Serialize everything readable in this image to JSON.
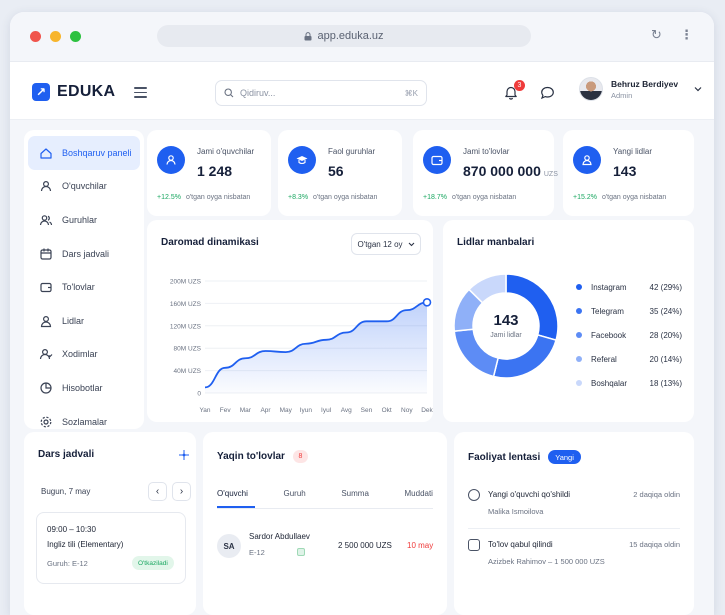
{
  "browser": {
    "url": "app.eduka.uz"
  },
  "colors": {
    "accent": "#1f5ff0",
    "positive": "#1aa761",
    "danger": "#ef3b3b"
  },
  "header": {
    "logo": "EDUKA",
    "search_placeholder": "Qidiruv...",
    "search_shortcut": "⌘K",
    "notifications_count": "3",
    "user_name": "Behruz Berdiyev",
    "user_role": "Admin"
  },
  "sidebar": {
    "items": [
      {
        "label": "Boshqaruv paneli",
        "icon": "home-icon"
      },
      {
        "label": "O'quvchilar",
        "icon": "user-icon"
      },
      {
        "label": "Guruhlar",
        "icon": "users-icon"
      },
      {
        "label": "Dars jadvali",
        "icon": "calendar-icon"
      },
      {
        "label": "To'lovlar",
        "icon": "wallet-icon"
      },
      {
        "label": "Lidlar",
        "icon": "lead-icon"
      },
      {
        "label": "Xodimlar",
        "icon": "staff-icon"
      },
      {
        "label": "Hisobotlar",
        "icon": "report-icon"
      },
      {
        "label": "Sozlamalar",
        "icon": "gear-icon"
      }
    ]
  },
  "stats": [
    {
      "label": "Jami o'quvchilar",
      "value": "1 248",
      "currency": "",
      "change": "+12.5%",
      "note": "o'tgan oyga nisbatan",
      "icon": "students-icon"
    },
    {
      "label": "Faol guruhlar",
      "value": "56",
      "currency": "",
      "change": "+8.3%",
      "note": "o'tgan oyga nisbatan",
      "icon": "cap-icon"
    },
    {
      "label": "Jami to'lovlar",
      "value": "870 000 000",
      "currency": "UZS",
      "change": "+18.7%",
      "note": "o'tgan oyga nisbatan",
      "icon": "wallet-icon"
    },
    {
      "label": "Yangi lidlar",
      "value": "143",
      "currency": "",
      "change": "+15.2%",
      "note": "o'tgan oyga nisbatan",
      "icon": "new-lead-icon"
    }
  ],
  "revenue": {
    "title": "Daromad dinamikasi",
    "period": "O'tgan 12 oy"
  },
  "leads": {
    "title": "Lidlar manbalari",
    "center_value": "143",
    "center_label": "Jami lidlar"
  },
  "chart_data": [
    {
      "type": "area",
      "title": "Daromad dinamikasi",
      "categories": [
        "Yan",
        "Fev",
        "Mar",
        "Apr",
        "May",
        "Iyun",
        "Iyul",
        "Avg",
        "Sen",
        "Okt",
        "Noy",
        "Dek"
      ],
      "values": [
        10,
        45,
        62,
        75,
        73,
        88,
        95,
        108,
        128,
        128,
        148,
        162
      ],
      "ylim": [
        0,
        200
      ],
      "yticks": [
        0,
        40,
        80,
        120,
        160,
        200
      ],
      "ytick_labels": [
        "0",
        "40M UZS",
        "80M UZS",
        "120M UZS",
        "160M UZS",
        "200M UZS"
      ],
      "grid": true
    },
    {
      "type": "pie",
      "title": "Lidlar manbalari",
      "legend_position": "right",
      "slices": [
        {
          "label": "Instagram",
          "value": 42,
          "percent": "29%",
          "display": "42 (29%)",
          "color": "#1f5ff0"
        },
        {
          "label": "Telegram",
          "value": 35,
          "percent": "24%",
          "display": "35 (24%)",
          "color": "#3b74f2"
        },
        {
          "label": "Facebook",
          "value": 28,
          "percent": "20%",
          "display": "28 (20%)",
          "color": "#5d8cf5"
        },
        {
          "label": "Referal",
          "value": 20,
          "percent": "14%",
          "display": "20 (14%)",
          "color": "#8fb0f8"
        },
        {
          "label": "Boshqalar",
          "value": 18,
          "percent": "13%",
          "display": "18 (13%)",
          "color": "#c9d8fb"
        }
      ]
    }
  ],
  "schedule": {
    "title": "Dars jadvali",
    "date": "Bugun, 7 may",
    "lesson": {
      "time": "09:00 – 10:30",
      "name": "Ingliz tili (Elementary)",
      "group": "Guruh: E-12",
      "status": "O'tkaziladi"
    }
  },
  "payments": {
    "title": "Yaqin to'lovlar",
    "count": "8",
    "columns": [
      "O'quvchi",
      "Guruh",
      "Summa",
      "Muddati"
    ],
    "rows": [
      {
        "initials": "SA",
        "name": "Sardor Abdullaev",
        "group": "E-12",
        "amount": "2 500 000 UZS",
        "due": "10 may"
      }
    ]
  },
  "activity": {
    "title": "Faoliyat lentasi",
    "badge": "Yangi",
    "items": [
      {
        "title": "Yangi o'quvchi qo'shildi",
        "detail": "Malika Ismoilova",
        "time": "2 daqiqa oldin",
        "icon": "user-add-icon"
      },
      {
        "title": "To'lov qabul qilindi",
        "detail": "Azizbek Rahimov – 1 500 000 UZS",
        "time": "15 daqiqa oldin",
        "icon": "payment-icon"
      }
    ]
  }
}
